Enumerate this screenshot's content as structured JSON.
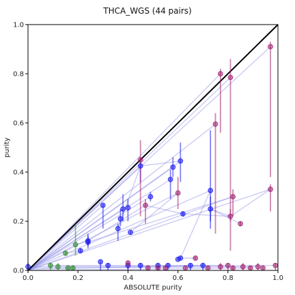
{
  "chart_data": {
    "type": "scatter",
    "title": "THCA_WGS (44 pairs)",
    "xlabel": "ABSOLUTE purity",
    "ylabel": "purity",
    "xlim": [
      0,
      1
    ],
    "ylim": [
      0,
      1
    ],
    "xticks": [
      "0.0",
      "0.2",
      "0.4",
      "0.6",
      "0.8",
      "1.0"
    ],
    "yticks": [
      "0.0",
      "0.2",
      "0.4",
      "0.6",
      "0.8",
      "1.0"
    ],
    "grid": false,
    "diagonal": true,
    "colors": {
      "blue": "#1a1aee",
      "purple": "#a0206e",
      "green": "#2e8b2e",
      "link": "#8c8ce6",
      "diagonal": "#000000"
    },
    "series": [
      {
        "color_key": "blue",
        "points": [
          {
            "x": 0.3,
            "y": 0.265,
            "lo": 0.17,
            "hi": 0.27
          },
          {
            "x": 0.36,
            "y": 0.17,
            "lo": 0.12,
            "hi": 0.19
          },
          {
            "x": 0.37,
            "y": 0.21,
            "lo": 0.18,
            "hi": 0.25
          },
          {
            "x": 0.38,
            "y": 0.25,
            "lo": 0.2,
            "hi": 0.31
          },
          {
            "x": 0.4,
            "y": 0.255,
            "lo": 0.2,
            "hi": 0.29
          },
          {
            "x": 0.41,
            "y": 0.155,
            "lo": 0.15,
            "hi": 0.16
          },
          {
            "x": 0.45,
            "y": 0.425,
            "lo": 0.36,
            "hi": 0.45
          },
          {
            "x": 0.49,
            "y": 0.3,
            "lo": 0.28,
            "hi": 0.32
          },
          {
            "x": 0.57,
            "y": 0.37,
            "lo": 0.29,
            "hi": 0.41
          },
          {
            "x": 0.58,
            "y": 0.42,
            "lo": 0.38,
            "hi": 0.46
          },
          {
            "x": 0.61,
            "y": 0.445,
            "lo": 0.36,
            "hi": 0.52
          },
          {
            "x": 0.62,
            "y": 0.23,
            "lo": 0.22,
            "hi": 0.24
          },
          {
            "x": 0.24,
            "y": 0.12,
            "lo": 0.1,
            "hi": 0.14
          },
          {
            "x": 0.24,
            "y": 0.115,
            "lo": 0.09,
            "hi": 0.15
          },
          {
            "x": 0.73,
            "y": 0.325,
            "lo": 0.2,
            "hi": 0.57
          },
          {
            "x": 0.73,
            "y": 0.25,
            "lo": 0.17,
            "hi": 0.3
          },
          {
            "x": 0.6,
            "y": 0.045,
            "lo": 0.04,
            "hi": 0.05
          },
          {
            "x": 0.61,
            "y": 0.05,
            "lo": 0.045,
            "hi": 0.055
          },
          {
            "x": 0.21,
            "y": 0.08,
            "lo": 0.07,
            "hi": 0.09
          },
          {
            "x": 0.0,
            "y": 0.015,
            "lo": 0.0,
            "hi": 0.03
          },
          {
            "x": 0.29,
            "y": 0.035,
            "lo": 0.0,
            "hi": 0.04
          },
          {
            "x": 0.32,
            "y": 0.02,
            "lo": 0.0,
            "hi": 0.03
          },
          {
            "x": 0.4,
            "y": 0.02,
            "lo": 0.0,
            "hi": 0.03
          },
          {
            "x": 0.45,
            "y": 0.02,
            "lo": 0.0,
            "hi": 0.03
          },
          {
            "x": 0.52,
            "y": 0.02,
            "lo": 0.0,
            "hi": 0.03
          },
          {
            "x": 0.56,
            "y": 0.02,
            "lo": 0.0,
            "hi": 0.03
          },
          {
            "x": 0.65,
            "y": 0.02,
            "lo": 0.0,
            "hi": 0.03
          },
          {
            "x": 0.7,
            "y": 0.02,
            "lo": 0.0,
            "hi": 0.03
          }
        ]
      },
      {
        "color_key": "purple",
        "points": [
          {
            "x": 0.45,
            "y": 0.45,
            "lo": 0.22,
            "hi": 0.53
          },
          {
            "x": 0.47,
            "y": 0.265,
            "lo": 0.19,
            "hi": 0.29
          },
          {
            "x": 0.6,
            "y": 0.315,
            "lo": 0.25,
            "hi": 0.38
          },
          {
            "x": 0.75,
            "y": 0.595,
            "lo": 0.15,
            "hi": 0.64
          },
          {
            "x": 0.77,
            "y": 0.8,
            "lo": 0.56,
            "hi": 0.82
          },
          {
            "x": 0.81,
            "y": 0.785,
            "lo": 0.08,
            "hi": 0.86
          },
          {
            "x": 0.81,
            "y": 0.22,
            "lo": 0.2,
            "hi": 0.25
          },
          {
            "x": 0.82,
            "y": 0.3,
            "lo": 0.22,
            "hi": 0.33
          },
          {
            "x": 0.85,
            "y": 0.19,
            "lo": 0.18,
            "hi": 0.2
          },
          {
            "x": 0.97,
            "y": 0.91,
            "lo": 0.38,
            "hi": 0.93
          },
          {
            "x": 0.97,
            "y": 0.33,
            "lo": 0.24,
            "hi": 0.35
          },
          {
            "x": 0.67,
            "y": 0.05,
            "lo": 0.04,
            "hi": 0.06
          },
          {
            "x": 0.4,
            "y": 0.03,
            "lo": 0.0,
            "hi": 0.04
          },
          {
            "x": 0.48,
            "y": 0.01,
            "lo": 0.0,
            "hi": 0.02
          },
          {
            "x": 0.52,
            "y": 0.01,
            "lo": 0.0,
            "hi": 0.02
          },
          {
            "x": 0.55,
            "y": 0.01,
            "lo": 0.0,
            "hi": 0.02
          },
          {
            "x": 0.63,
            "y": 0.01,
            "lo": 0.0,
            "hi": 0.02
          },
          {
            "x": 0.72,
            "y": 0.01,
            "lo": 0.0,
            "hi": 0.02
          },
          {
            "x": 0.77,
            "y": 0.015,
            "lo": 0.0,
            "hi": 0.03
          },
          {
            "x": 0.8,
            "y": 0.02,
            "lo": 0.0,
            "hi": 0.03
          },
          {
            "x": 0.82,
            "y": 0.01,
            "lo": 0.0,
            "hi": 0.02
          },
          {
            "x": 0.86,
            "y": 0.015,
            "lo": 0.0,
            "hi": 0.03
          },
          {
            "x": 0.89,
            "y": 0.01,
            "lo": 0.0,
            "hi": 0.02
          },
          {
            "x": 0.92,
            "y": 0.015,
            "lo": 0.0,
            "hi": 0.03
          },
          {
            "x": 0.94,
            "y": 0.01,
            "lo": 0.0,
            "hi": 0.02
          },
          {
            "x": 0.99,
            "y": 0.02,
            "lo": 0.0,
            "hi": 0.03
          }
        ]
      },
      {
        "color_key": "green",
        "points": [
          {
            "x": 0.19,
            "y": 0.105,
            "lo": 0.06,
            "hi": 0.19
          },
          {
            "x": 0.15,
            "y": 0.07,
            "lo": 0.06,
            "hi": 0.08
          },
          {
            "x": 0.09,
            "y": 0.02,
            "lo": 0.0,
            "hi": 0.03
          },
          {
            "x": 0.12,
            "y": 0.015,
            "lo": 0.0,
            "hi": 0.03
          },
          {
            "x": 0.16,
            "y": 0.01,
            "lo": 0.0,
            "hi": 0.02
          },
          {
            "x": 0.18,
            "y": 0.01,
            "lo": 0.0,
            "hi": 0.02
          }
        ]
      }
    ],
    "links": [
      [
        [
          0.0,
          0.0
        ],
        [
          0.45,
          0.45
        ]
      ],
      [
        [
          0.0,
          0.0
        ],
        [
          0.45,
          0.425
        ]
      ],
      [
        [
          0.0,
          0.0
        ],
        [
          0.57,
          0.37
        ]
      ],
      [
        [
          0.0,
          0.0
        ],
        [
          0.58,
          0.42
        ]
      ],
      [
        [
          0.0,
          0.0
        ],
        [
          0.61,
          0.445
        ]
      ],
      [
        [
          0.0,
          0.0
        ],
        [
          0.77,
          0.8
        ]
      ],
      [
        [
          0.0,
          0.0
        ],
        [
          0.81,
          0.785
        ]
      ],
      [
        [
          0.0,
          0.0
        ],
        [
          0.75,
          0.595
        ]
      ],
      [
        [
          0.0,
          0.0
        ],
        [
          0.97,
          0.91
        ]
      ],
      [
        [
          0.0,
          0.0
        ],
        [
          0.97,
          0.33
        ]
      ],
      [
        [
          0.0,
          0.0
        ],
        [
          0.82,
          0.3
        ]
      ],
      [
        [
          0.0,
          0.0
        ],
        [
          0.73,
          0.325
        ]
      ],
      [
        [
          0.0,
          0.0
        ],
        [
          0.6,
          0.315
        ]
      ],
      [
        [
          0.0,
          0.0
        ],
        [
          0.49,
          0.3
        ]
      ],
      [
        [
          0.0,
          0.0
        ],
        [
          0.3,
          0.265
        ]
      ],
      [
        [
          0.0,
          0.0
        ],
        [
          0.38,
          0.25
        ]
      ],
      [
        [
          0.0,
          0.0
        ],
        [
          0.19,
          0.105
        ]
      ],
      [
        [
          0.45,
          0.45
        ],
        [
          0.45,
          0.425
        ]
      ],
      [
        [
          0.45,
          0.425
        ],
        [
          0.36,
          0.17
        ]
      ],
      [
        [
          0.45,
          0.425
        ],
        [
          0.61,
          0.445
        ]
      ],
      [
        [
          0.47,
          0.265
        ],
        [
          0.24,
          0.12
        ]
      ],
      [
        [
          0.47,
          0.265
        ],
        [
          0.62,
          0.23
        ]
      ],
      [
        [
          0.6,
          0.315
        ],
        [
          0.41,
          0.155
        ]
      ],
      [
        [
          0.81,
          0.22
        ],
        [
          0.73,
          0.25
        ]
      ],
      [
        [
          0.81,
          0.22
        ],
        [
          0.62,
          0.23
        ]
      ],
      [
        [
          0.85,
          0.19
        ],
        [
          0.73,
          0.25
        ]
      ],
      [
        [
          0.97,
          0.33
        ],
        [
          0.81,
          0.22
        ]
      ],
      [
        [
          0.82,
          0.3
        ],
        [
          0.24,
          0.115
        ]
      ],
      [
        [
          0.61,
          0.05
        ],
        [
          0.67,
          0.05
        ]
      ],
      [
        [
          0.73,
          0.325
        ],
        [
          0.61,
          0.05
        ]
      ],
      [
        [
          0.15,
          0.07
        ],
        [
          0.21,
          0.08
        ]
      ],
      [
        [
          0.19,
          0.105
        ],
        [
          0.24,
          0.12
        ]
      ],
      [
        [
          0.0,
          0.015
        ],
        [
          0.99,
          0.02
        ]
      ],
      [
        [
          0.0,
          0.01
        ],
        [
          0.92,
          0.015
        ]
      ],
      [
        [
          0.0,
          0.005
        ],
        [
          0.7,
          0.02
        ]
      ],
      [
        [
          0.09,
          0.02
        ],
        [
          0.8,
          0.02
        ]
      ],
      [
        [
          0.0,
          0.0
        ],
        [
          0.89,
          0.01
        ]
      ]
    ]
  }
}
